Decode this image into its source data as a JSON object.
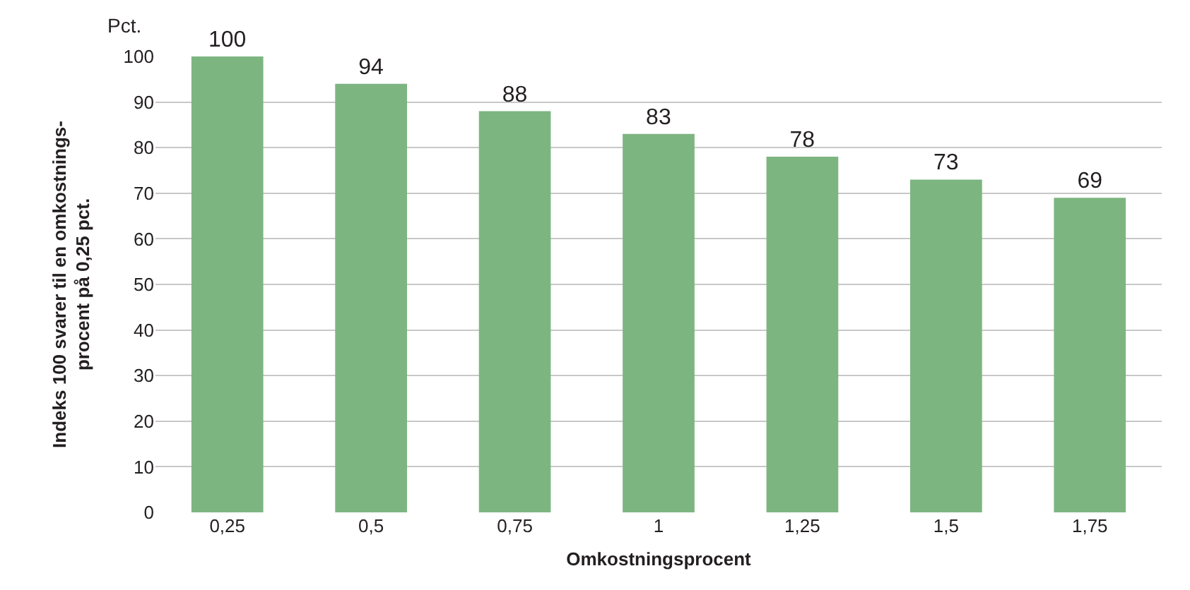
{
  "chart_data": {
    "type": "bar",
    "categories": [
      "0,25",
      "0,5",
      "0,75",
      "1",
      "1,25",
      "1,5",
      "1,75"
    ],
    "values": [
      100,
      94,
      88,
      83,
      78,
      73,
      69
    ],
    "color": "#7db581",
    "ylim": [
      0,
      100
    ],
    "yticks": [
      0,
      10,
      20,
      30,
      40,
      50,
      60,
      70,
      80,
      90,
      100
    ],
    "grid": "y",
    "data_labels": true,
    "xlabel": "Omkostningsprocent",
    "ylabel": "Indeks 100 svarer til en omkostnings-\nprocent på 0,25 pct.",
    "annotations": [
      "Pct."
    ]
  }
}
